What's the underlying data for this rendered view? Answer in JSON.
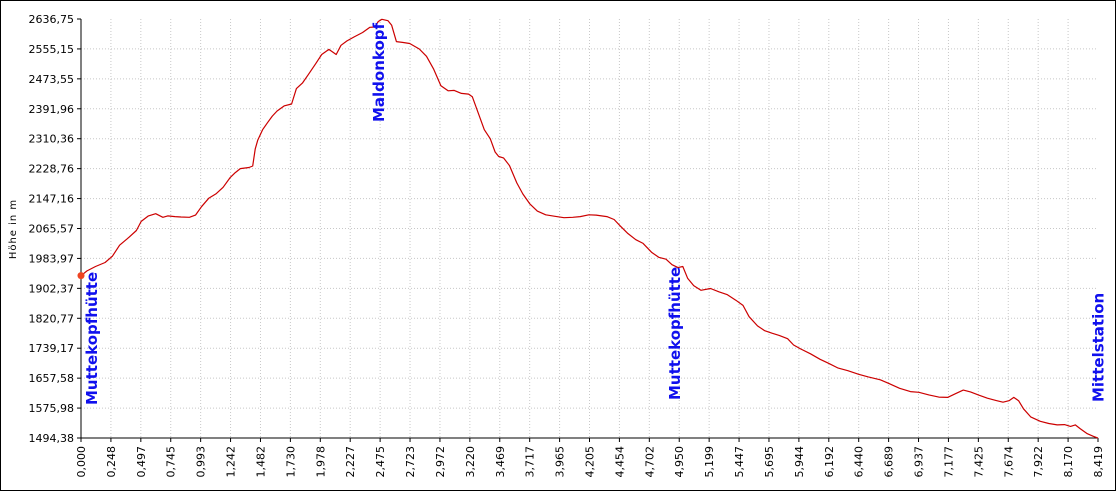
{
  "chart_data": {
    "type": "line",
    "xlabel": "",
    "ylabel": "Höhe in m",
    "xlim": [
      0,
      8.5
    ],
    "ylim": [
      1494.38,
      2636.75
    ],
    "grid": true,
    "x_ticks": [
      "0,000",
      "0,248",
      "0,497",
      "0,745",
      "0,993",
      "1,242",
      "1,482",
      "1,730",
      "1,978",
      "2,227",
      "2,475",
      "2,723",
      "2,972",
      "3,220",
      "3,469",
      "3,717",
      "3,965",
      "4,205",
      "4,454",
      "4,702",
      "4,950",
      "5,199",
      "5,447",
      "5,695",
      "5,944",
      "6,192",
      "6,440",
      "6,689",
      "6,937",
      "7,177",
      "7,425",
      "7,674",
      "7,922",
      "8,170",
      "8,419"
    ],
    "y_ticks": [
      "2636,75",
      "2555,15",
      "2473,55",
      "2391,96",
      "2310,36",
      "2228,76",
      "2147,16",
      "2065,57",
      "1983,97",
      "1902,37",
      "1820,77",
      "1739,17",
      "1657,58",
      "1575,98",
      "1494,38"
    ],
    "series": [
      {
        "color": "#cc0000",
        "points": [
          [
            0.0,
            1937
          ],
          [
            0.05,
            1950
          ],
          [
            0.12,
            1962
          ],
          [
            0.2,
            1973
          ],
          [
            0.26,
            1990
          ],
          [
            0.32,
            2020
          ],
          [
            0.4,
            2042
          ],
          [
            0.46,
            2060
          ],
          [
            0.5,
            2085
          ],
          [
            0.56,
            2100
          ],
          [
            0.62,
            2106
          ],
          [
            0.68,
            2096
          ],
          [
            0.72,
            2100
          ],
          [
            0.78,
            2098
          ],
          [
            0.83,
            2097
          ],
          [
            0.9,
            2096
          ],
          [
            0.95,
            2102
          ],
          [
            1.0,
            2125
          ],
          [
            1.06,
            2148
          ],
          [
            1.12,
            2160
          ],
          [
            1.18,
            2178
          ],
          [
            1.24,
            2205
          ],
          [
            1.28,
            2218
          ],
          [
            1.32,
            2229
          ],
          [
            1.39,
            2232
          ],
          [
            1.42,
            2236
          ],
          [
            1.44,
            2282
          ],
          [
            1.46,
            2306
          ],
          [
            1.5,
            2335
          ],
          [
            1.54,
            2354
          ],
          [
            1.58,
            2372
          ],
          [
            1.62,
            2386
          ],
          [
            1.68,
            2400
          ],
          [
            1.74,
            2405
          ],
          [
            1.78,
            2447
          ],
          [
            1.83,
            2462
          ],
          [
            1.88,
            2486
          ],
          [
            1.94,
            2515
          ],
          [
            1.99,
            2540
          ],
          [
            2.05,
            2554
          ],
          [
            2.11,
            2540
          ],
          [
            2.15,
            2565
          ],
          [
            2.2,
            2577
          ],
          [
            2.26,
            2588
          ],
          [
            2.33,
            2600
          ],
          [
            2.39,
            2614
          ],
          [
            2.43,
            2615
          ],
          [
            2.46,
            2630
          ],
          [
            2.49,
            2636
          ],
          [
            2.54,
            2632
          ],
          [
            2.57,
            2620
          ],
          [
            2.61,
            2575
          ],
          [
            2.66,
            2573
          ],
          [
            2.72,
            2570
          ],
          [
            2.8,
            2555
          ],
          [
            2.86,
            2535
          ],
          [
            2.92,
            2500
          ],
          [
            2.98,
            2455
          ],
          [
            3.04,
            2441
          ],
          [
            3.09,
            2442
          ],
          [
            3.15,
            2434
          ],
          [
            3.21,
            2432
          ],
          [
            3.24,
            2425
          ],
          [
            3.29,
            2380
          ],
          [
            3.34,
            2335
          ],
          [
            3.39,
            2310
          ],
          [
            3.43,
            2274
          ],
          [
            3.46,
            2262
          ],
          [
            3.5,
            2258
          ],
          [
            3.55,
            2237
          ],
          [
            3.61,
            2190
          ],
          [
            3.66,
            2160
          ],
          [
            3.72,
            2132
          ],
          [
            3.78,
            2113
          ],
          [
            3.85,
            2103
          ],
          [
            3.92,
            2099
          ],
          [
            4.0,
            2095
          ],
          [
            4.07,
            2096
          ],
          [
            4.13,
            2098
          ],
          [
            4.2,
            2103
          ],
          [
            4.26,
            2102
          ],
          [
            4.35,
            2098
          ],
          [
            4.41,
            2090
          ],
          [
            4.46,
            2073
          ],
          [
            4.52,
            2053
          ],
          [
            4.59,
            2035
          ],
          [
            4.65,
            2025
          ],
          [
            4.72,
            2001
          ],
          [
            4.78,
            1987
          ],
          [
            4.84,
            1982
          ],
          [
            4.89,
            1967
          ],
          [
            4.94,
            1959
          ],
          [
            4.98,
            1962
          ],
          [
            5.02,
            1930
          ],
          [
            5.07,
            1910
          ],
          [
            5.13,
            1897
          ],
          [
            5.21,
            1902
          ],
          [
            5.28,
            1893
          ],
          [
            5.35,
            1885
          ],
          [
            5.42,
            1870
          ],
          [
            5.48,
            1856
          ],
          [
            5.53,
            1825
          ],
          [
            5.6,
            1800
          ],
          [
            5.66,
            1787
          ],
          [
            5.72,
            1780
          ],
          [
            5.78,
            1774
          ],
          [
            5.85,
            1765
          ],
          [
            5.9,
            1748
          ],
          [
            5.96,
            1737
          ],
          [
            6.04,
            1724
          ],
          [
            6.12,
            1709
          ],
          [
            6.19,
            1698
          ],
          [
            6.27,
            1685
          ],
          [
            6.35,
            1678
          ],
          [
            6.44,
            1668
          ],
          [
            6.52,
            1661
          ],
          [
            6.62,
            1653
          ],
          [
            6.7,
            1642
          ],
          [
            6.78,
            1630
          ],
          [
            6.87,
            1621
          ],
          [
            6.94,
            1619
          ],
          [
            7.02,
            1612
          ],
          [
            7.1,
            1606
          ],
          [
            7.17,
            1605
          ],
          [
            7.24,
            1616
          ],
          [
            7.3,
            1625
          ],
          [
            7.36,
            1620
          ],
          [
            7.43,
            1611
          ],
          [
            7.5,
            1603
          ],
          [
            7.57,
            1597
          ],
          [
            7.63,
            1592
          ],
          [
            7.68,
            1596
          ],
          [
            7.72,
            1605
          ],
          [
            7.76,
            1596
          ],
          [
            7.8,
            1574
          ],
          [
            7.86,
            1552
          ],
          [
            7.94,
            1540
          ],
          [
            8.01,
            1534
          ],
          [
            8.08,
            1530
          ],
          [
            8.14,
            1531
          ],
          [
            8.19,
            1526
          ],
          [
            8.23,
            1530
          ],
          [
            8.27,
            1520
          ],
          [
            8.33,
            1506
          ],
          [
            8.38,
            1499
          ],
          [
            8.419,
            1494
          ]
        ]
      }
    ],
    "marker": {
      "x": 0.0,
      "y": 1937,
      "color": "#ee4422"
    },
    "annotations": [
      {
        "text": "Muttekopfhütte",
        "x": 0.0
      },
      {
        "text": "Maldonkopf",
        "x": 2.475
      },
      {
        "text": "Muttekopfhütte",
        "x": 4.9
      },
      {
        "text": "Mittelstation",
        "x": 8.4
      }
    ]
  }
}
